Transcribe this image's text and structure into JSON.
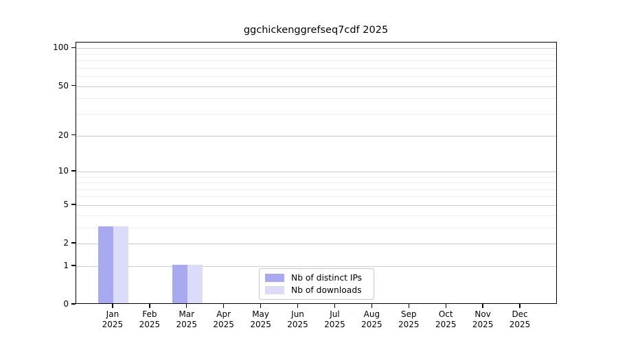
{
  "title": "ggchickenggrefseq7cdf 2025",
  "chart_data": {
    "type": "bar",
    "title": "ggchickenggrefseq7cdf 2025",
    "categories": [
      "Jan",
      "Feb",
      "Mar",
      "Apr",
      "May",
      "Jun",
      "Jul",
      "Aug",
      "Sep",
      "Oct",
      "Nov",
      "Dec"
    ],
    "category_year": "2025",
    "series": [
      {
        "name": "Nb of distinct IPs",
        "color": "#a9a9f1",
        "values": [
          3,
          0,
          1,
          0,
          0,
          0,
          0,
          0,
          0,
          0,
          0,
          0
        ]
      },
      {
        "name": "Nb of downloads",
        "color": "#dcdcf8",
        "values": [
          3,
          0,
          1,
          0,
          0,
          0,
          0,
          0,
          0,
          0,
          0,
          0
        ]
      }
    ],
    "xlabel": "",
    "ylabel": "",
    "yscale": "log1p",
    "ylim": [
      0,
      111
    ],
    "y_major_ticks": [
      0,
      1,
      2,
      5,
      10,
      20,
      50,
      100
    ],
    "y_minor_ticks": [
      3,
      4,
      6,
      7,
      8,
      9,
      30,
      40,
      60,
      70,
      80,
      90
    ],
    "grid": true,
    "legend_position": "bottom-center",
    "colors": {
      "major_grid": "#cbcbcb",
      "minor_grid": "#ededed",
      "spine": "#000000",
      "background": "#ffffff"
    }
  }
}
